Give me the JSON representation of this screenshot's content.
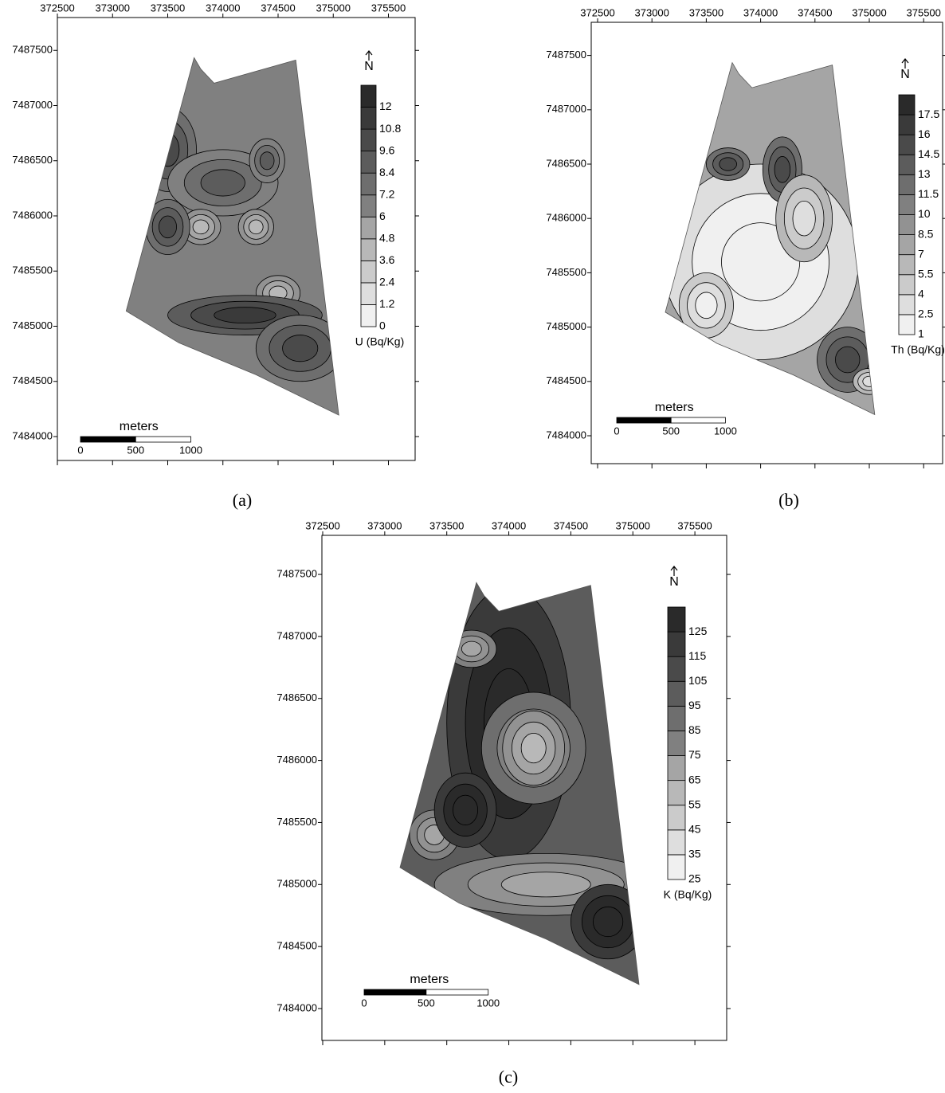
{
  "panels": [
    {
      "caption": "(a)",
      "xticks": [
        372500,
        373000,
        373500,
        374000,
        374500,
        375000,
        375500
      ],
      "yticks": [
        7484000,
        7484500,
        7485000,
        7485500,
        7486000,
        7486500,
        7487000,
        7487500
      ],
      "north": "N",
      "legend": {
        "title": "U (Bq/Kg)",
        "levels": [
          0,
          1.2,
          2.4,
          3.6,
          4.8,
          6,
          7.2,
          8.4,
          9.6,
          10.8,
          12
        ]
      },
      "scale_bar": {
        "title": "meters",
        "labels": [
          0,
          500,
          1000
        ]
      }
    },
    {
      "caption": "(b)",
      "xticks": [
        372500,
        373000,
        373500,
        374000,
        374500,
        375000,
        375500
      ],
      "yticks": [
        7484000,
        7484500,
        7485000,
        7485500,
        7486000,
        7486500,
        7487000,
        7487500
      ],
      "north": "N",
      "legend": {
        "title": "Th (Bq/Kg)",
        "levels": [
          1,
          2.5,
          4,
          5.5,
          7,
          8.5,
          10,
          11.5,
          13,
          14.5,
          16,
          17.5
        ]
      },
      "scale_bar": {
        "title": "meters",
        "labels": [
          0,
          500,
          1000
        ]
      }
    },
    {
      "caption": "(c)",
      "xticks": [
        372500,
        373000,
        373500,
        374000,
        374500,
        375000,
        375500
      ],
      "yticks": [
        7484000,
        7484500,
        7485000,
        7485500,
        7486000,
        7486500,
        7487000,
        7487500
      ],
      "north": "N",
      "legend": {
        "title": "K (Bq/Kg)",
        "levels": [
          25,
          35,
          45,
          55,
          65,
          75,
          85,
          95,
          105,
          115,
          125
        ]
      },
      "scale_bar": {
        "title": "meters",
        "labels": [
          0,
          500,
          1000
        ]
      }
    }
  ]
}
